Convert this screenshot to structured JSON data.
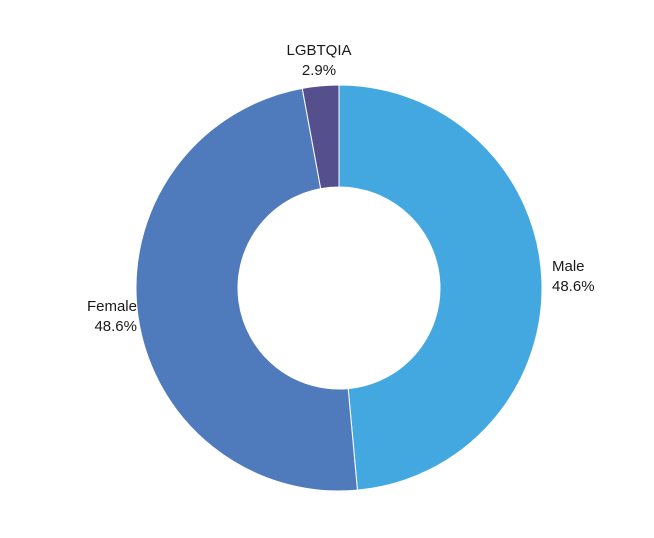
{
  "chart_data": {
    "type": "pie",
    "title": "",
    "slices": [
      {
        "label": "Male",
        "value": 48.6,
        "value_label": "48.6%",
        "color": "#44a8e0"
      },
      {
        "label": "Female",
        "value": 48.6,
        "value_label": "48.6%",
        "color": "#4f7bbd"
      },
      {
        "label": "LGBTQIA",
        "value": 2.9,
        "value_label": "2.9%",
        "color": "#554f8e"
      }
    ],
    "donut": true,
    "legend": "none"
  }
}
